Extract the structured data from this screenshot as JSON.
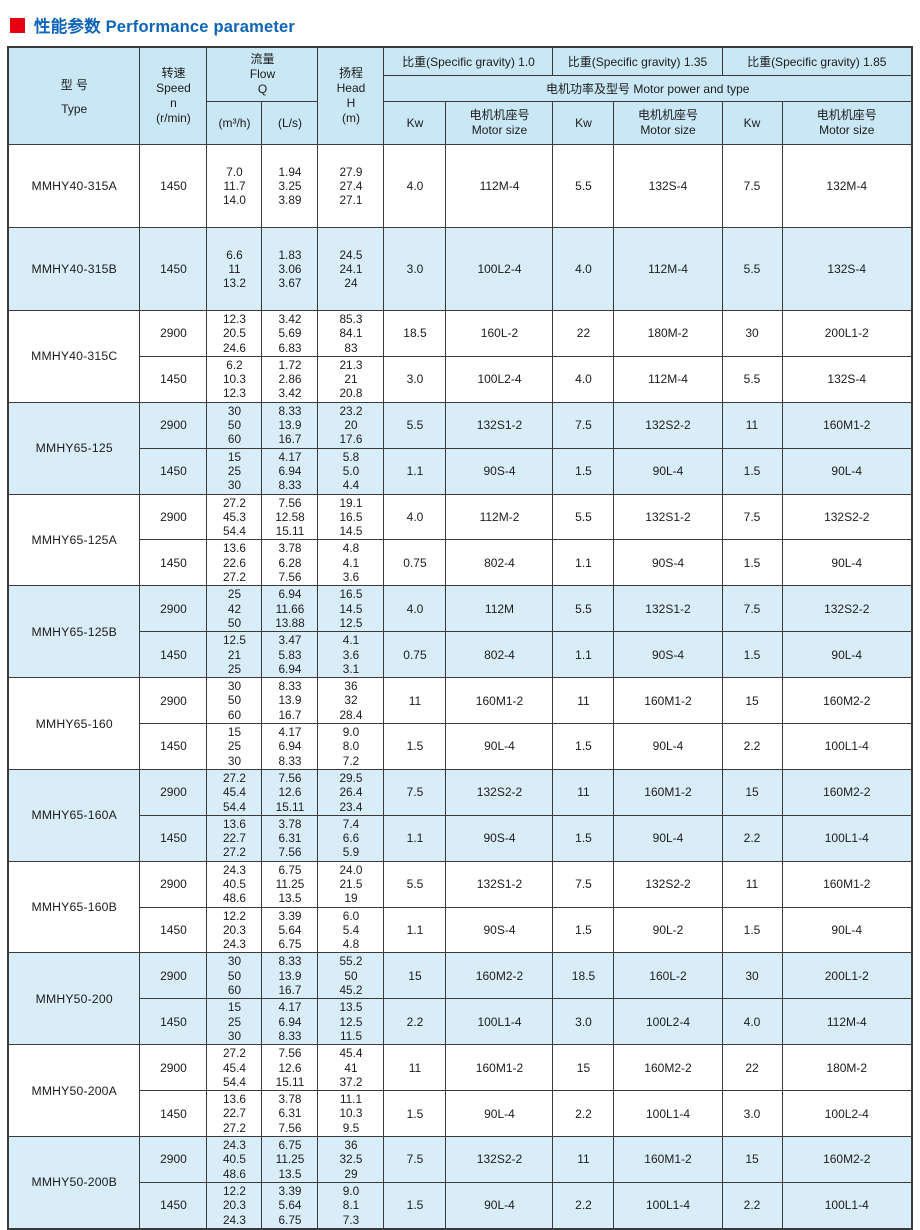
{
  "page": {
    "title": "性能参数 Performance parameter",
    "accent_red": "#e60012",
    "title_blue": "#0e64b6",
    "header_bg": "#c9e7f5",
    "row_shade_bg": "#d9edf8"
  },
  "table": {
    "header": {
      "type_zh": "型  号",
      "type_en": "Type",
      "speed": "转速\nSpeed\nn\n(r/min)",
      "flow": "流量\nFlow\nQ",
      "flow_m3h": "(m³/h)",
      "flow_ls": "(L/s)",
      "head": "扬程\nHead\nH\n(m)",
      "gravity_groups": [
        "比重(Specific gravity) 1.0",
        "比重(Specific gravity) 1.35",
        "比重(Specific gravity) 1.85"
      ],
      "motor_power": "电机功率及型号  Motor power and type",
      "kw": "Kw",
      "motor_size": "电机机座号\nMotor size"
    },
    "rows": [
      {
        "type": "MMHY40-315A",
        "shade": false,
        "speeds": [
          {
            "rpm": "1450",
            "m3h": "7.0\n11.7\n14.0",
            "ls": "1.94\n3.25\n3.89",
            "head": "27.9\n27.4\n27.1",
            "g10_kw": "4.0",
            "g10_motor": "112M-4",
            "g135_kw": "5.5",
            "g135_motor": "132S-4",
            "g185_kw": "7.5",
            "g185_motor": "132M-4"
          }
        ]
      },
      {
        "type": "MMHY40-315B",
        "shade": true,
        "speeds": [
          {
            "rpm": "1450",
            "m3h": "6.6\n11\n13.2",
            "ls": "1.83\n3.06\n3.67",
            "head": "24.5\n24.1\n24",
            "g10_kw": "3.0",
            "g10_motor": "100L2-4",
            "g135_kw": "4.0",
            "g135_motor": "112M-4",
            "g185_kw": "5.5",
            "g185_motor": "132S-4"
          }
        ]
      },
      {
        "type": "MMHY40-315C",
        "shade": false,
        "speeds": [
          {
            "rpm": "2900",
            "m3h": "12.3\n20.5\n24.6",
            "ls": "3.42\n5.69\n6.83",
            "head": "85.3\n84.1\n83",
            "g10_kw": "18.5",
            "g10_motor": "160L-2",
            "g135_kw": "22",
            "g135_motor": "180M-2",
            "g185_kw": "30",
            "g185_motor": "200L1-2"
          },
          {
            "rpm": "1450",
            "m3h": "6.2\n10.3\n12.3",
            "ls": "1.72\n2.86\n3.42",
            "head": "21.3\n21\n20.8",
            "g10_kw": "3.0",
            "g10_motor": "100L2-4",
            "g135_kw": "4.0",
            "g135_motor": "112M-4",
            "g185_kw": "5.5",
            "g185_motor": "132S-4"
          }
        ]
      },
      {
        "type": "MMHY65-125",
        "shade": true,
        "speeds": [
          {
            "rpm": "2900",
            "m3h": "30\n50\n60",
            "ls": "8.33\n13.9\n16.7",
            "head": "23.2\n20\n17.6",
            "g10_kw": "5.5",
            "g10_motor": "132S1-2",
            "g135_kw": "7.5",
            "g135_motor": "132S2-2",
            "g185_kw": "11",
            "g185_motor": "160M1-2"
          },
          {
            "rpm": "1450",
            "m3h": "15\n25\n30",
            "ls": "4.17\n6.94\n8.33",
            "head": "5.8\n5.0\n4.4",
            "g10_kw": "1.1",
            "g10_motor": "90S-4",
            "g135_kw": "1.5",
            "g135_motor": "90L-4",
            "g185_kw": "1.5",
            "g185_motor": "90L-4"
          }
        ]
      },
      {
        "type": "MMHY65-125A",
        "shade": false,
        "speeds": [
          {
            "rpm": "2900",
            "m3h": "27.2\n45.3\n54.4",
            "ls": "7.56\n12.58\n15.11",
            "head": "19.1\n16.5\n14.5",
            "g10_kw": "4.0",
            "g10_motor": "112M-2",
            "g135_kw": "5.5",
            "g135_motor": "132S1-2",
            "g185_kw": "7.5",
            "g185_motor": "132S2-2"
          },
          {
            "rpm": "1450",
            "m3h": "13.6\n22.6\n27.2",
            "ls": "3.78\n6.28\n7.56",
            "head": "4.8\n4.1\n3.6",
            "g10_kw": "0.75",
            "g10_motor": "802-4",
            "g135_kw": "1.1",
            "g135_motor": "90S-4",
            "g185_kw": "1.5",
            "g185_motor": "90L-4"
          }
        ]
      },
      {
        "type": "MMHY65-125B",
        "shade": true,
        "speeds": [
          {
            "rpm": "2900",
            "m3h": "25\n42\n50",
            "ls": "6.94\n11.66\n13.88",
            "head": "16.5\n14.5\n12.5",
            "g10_kw": "4.0",
            "g10_motor": "112M",
            "g135_kw": "5.5",
            "g135_motor": "132S1-2",
            "g185_kw": "7.5",
            "g185_motor": "132S2-2"
          },
          {
            "rpm": "1450",
            "m3h": "12.5\n21\n25",
            "ls": "3.47\n5.83\n6.94",
            "head": "4.1\n3.6\n3.1",
            "g10_kw": "0.75",
            "g10_motor": "802-4",
            "g135_kw": "1.1",
            "g135_motor": "90S-4",
            "g185_kw": "1.5",
            "g185_motor": "90L-4"
          }
        ]
      },
      {
        "type": "MMHY65-160",
        "shade": false,
        "speeds": [
          {
            "rpm": "2900",
            "m3h": "30\n50\n60",
            "ls": "8.33\n13.9\n16.7",
            "head": "36\n32\n28.4",
            "g10_kw": "11",
            "g10_motor": "160M1-2",
            "g135_kw": "11",
            "g135_motor": "160M1-2",
            "g185_kw": "15",
            "g185_motor": "160M2-2"
          },
          {
            "rpm": "1450",
            "m3h": "15\n25\n30",
            "ls": "4.17\n6.94\n8.33",
            "head": "9.0\n8.0\n7.2",
            "g10_kw": "1.5",
            "g10_motor": "90L-4",
            "g135_kw": "1.5",
            "g135_motor": "90L-4",
            "g185_kw": "2.2",
            "g185_motor": "100L1-4"
          }
        ]
      },
      {
        "type": "MMHY65-160A",
        "shade": true,
        "speeds": [
          {
            "rpm": "2900",
            "m3h": "27.2\n45.4\n54.4",
            "ls": "7.56\n12.6\n15.11",
            "head": "29.5\n26.4\n23.4",
            "g10_kw": "7.5",
            "g10_motor": "132S2-2",
            "g135_kw": "11",
            "g135_motor": "160M1-2",
            "g185_kw": "15",
            "g185_motor": "160M2-2"
          },
          {
            "rpm": "1450",
            "m3h": "13.6\n22.7\n27.2",
            "ls": "3.78\n6.31\n7.56",
            "head": "7.4\n6.6\n5.9",
            "g10_kw": "1.1",
            "g10_motor": "90S-4",
            "g135_kw": "1.5",
            "g135_motor": "90L-4",
            "g185_kw": "2.2",
            "g185_motor": "100L1-4"
          }
        ]
      },
      {
        "type": "MMHY65-160B",
        "shade": false,
        "speeds": [
          {
            "rpm": "2900",
            "m3h": "24.3\n40.5\n48.6",
            "ls": "6.75\n11.25\n13.5",
            "head": "24.0\n21.5\n19",
            "g10_kw": "5.5",
            "g10_motor": "132S1-2",
            "g135_kw": "7.5",
            "g135_motor": "132S2-2",
            "g185_kw": "11",
            "g185_motor": "160M1-2"
          },
          {
            "rpm": "1450",
            "m3h": "12.2\n20.3\n24.3",
            "ls": "3.39\n5.64\n6.75",
            "head": "6.0\n5.4\n4.8",
            "g10_kw": "1.1",
            "g10_motor": "90S-4",
            "g135_kw": "1.5",
            "g135_motor": "90L-2",
            "g185_kw": "1.5",
            "g185_motor": "90L-4"
          }
        ]
      },
      {
        "type": "MMHY50-200",
        "shade": true,
        "speeds": [
          {
            "rpm": "2900",
            "m3h": "30\n50\n60",
            "ls": "8.33\n13.9\n16.7",
            "head": "55.2\n50\n45.2",
            "g10_kw": "15",
            "g10_motor": "160M2-2",
            "g135_kw": "18.5",
            "g135_motor": "160L-2",
            "g185_kw": "30",
            "g185_motor": "200L1-2"
          },
          {
            "rpm": "1450",
            "m3h": "15\n25\n30",
            "ls": "4.17\n6.94\n8.33",
            "head": "13.5\n12.5\n11.5",
            "g10_kw": "2.2",
            "g10_motor": "100L1-4",
            "g135_kw": "3.0",
            "g135_motor": "100L2-4",
            "g185_kw": "4.0",
            "g185_motor": "112M-4"
          }
        ]
      },
      {
        "type": "MMHY50-200A",
        "shade": false,
        "speeds": [
          {
            "rpm": "2900",
            "m3h": "27.2\n45.4\n54.4",
            "ls": "7.56\n12.6\n15.11",
            "head": "45.4\n41\n37.2",
            "g10_kw": "11",
            "g10_motor": "160M1-2",
            "g135_kw": "15",
            "g135_motor": "160M2-2",
            "g185_kw": "22",
            "g185_motor": "180M-2"
          },
          {
            "rpm": "1450",
            "m3h": "13.6\n22.7\n27.2",
            "ls": "3.78\n6.31\n7.56",
            "head": "11.1\n10.3\n9.5",
            "g10_kw": "1.5",
            "g10_motor": "90L-4",
            "g135_kw": "2.2",
            "g135_motor": "100L1-4",
            "g185_kw": "3.0",
            "g185_motor": "100L2-4"
          }
        ]
      },
      {
        "type": "MMHY50-200B",
        "shade": true,
        "speeds": [
          {
            "rpm": "2900",
            "m3h": "24.3\n40.5\n48.6",
            "ls": "6.75\n11.25\n13.5",
            "head": "36\n32.5\n29",
            "g10_kw": "7.5",
            "g10_motor": "132S2-2",
            "g135_kw": "11",
            "g135_motor": "160M1-2",
            "g185_kw": "15",
            "g185_motor": "160M2-2"
          },
          {
            "rpm": "1450",
            "m3h": "12.2\n20.3\n24.3",
            "ls": "3.39\n5.64\n6.75",
            "head": "9.0\n8.1\n7.3",
            "g10_kw": "1.5",
            "g10_motor": "90L-4",
            "g135_kw": "2.2",
            "g135_motor": "100L1-4",
            "g185_kw": "2.2",
            "g185_motor": "100L1-4"
          }
        ]
      }
    ]
  }
}
